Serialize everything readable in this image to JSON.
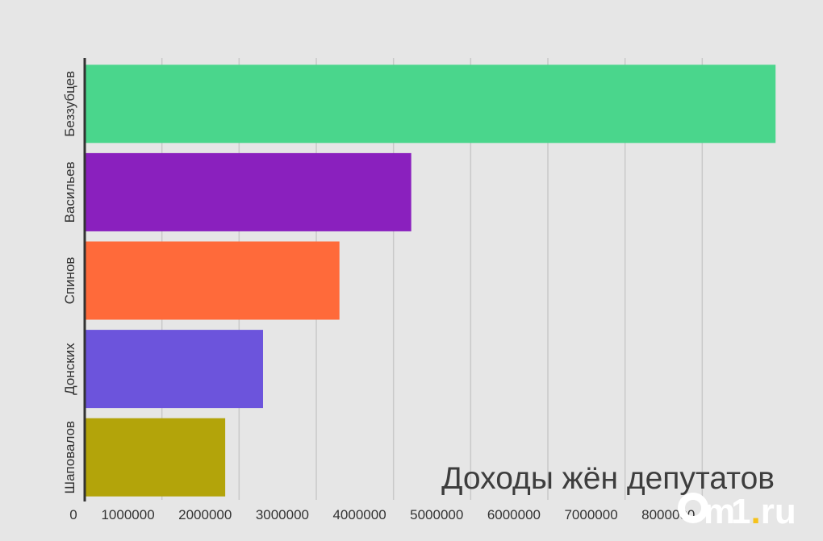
{
  "chart_data": {
    "type": "bar",
    "orientation": "horizontal",
    "title": "Доходы жён депутатов",
    "categories": [
      "Беззубцев",
      "Васильев",
      "Спинов",
      "Донских",
      "Шаповалов"
    ],
    "values": [
      8950000,
      4230000,
      3300000,
      2310000,
      1820000
    ],
    "colors": [
      "#4ad68c",
      "#8a20be",
      "#ff6a3a",
      "#6c54dc",
      "#b3a40a"
    ],
    "xlim": [
      0,
      9000000
    ],
    "x_ticks": [
      0,
      1000000,
      2000000,
      3000000,
      4000000,
      5000000,
      6000000,
      7000000,
      8000000
    ],
    "x_tick_labels": [
      "0",
      "1000000",
      "2000000",
      "3000000",
      "4000000",
      "5000000",
      "6000000",
      "7000000",
      "8000000"
    ],
    "grid": true,
    "xlabel": "",
    "ylabel": ""
  },
  "logo": {
    "text": "Om1",
    "dot": ".",
    "suffix": "ru"
  }
}
